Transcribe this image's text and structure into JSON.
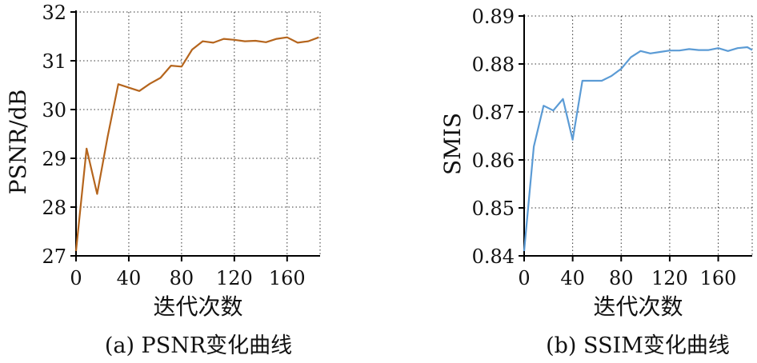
{
  "chart_data": [
    {
      "type": "line",
      "title": "",
      "caption": "(a) PSNR变化曲线",
      "xlabel": "迭代次数",
      "ylabel": "PSNR/dB",
      "xlim": [
        0,
        185
      ],
      "ylim": [
        27,
        32
      ],
      "xticks": [
        "0",
        "40",
        "80",
        "120",
        "160"
      ],
      "yticks": [
        "27",
        "28",
        "29",
        "30",
        "31",
        "32"
      ],
      "grid": true,
      "color": "#B5651D",
      "series": [
        {
          "x": [
            0,
            8,
            16,
            24,
            32,
            40,
            48,
            56,
            64,
            72,
            80,
            88,
            96,
            104,
            112,
            120,
            128,
            136,
            144,
            152,
            160,
            168,
            176,
            184
          ],
          "y": [
            27.1,
            29.2,
            28.27,
            29.45,
            30.52,
            30.45,
            30.38,
            30.53,
            30.65,
            30.9,
            30.88,
            31.23,
            31.4,
            31.37,
            31.45,
            31.43,
            31.4,
            31.41,
            31.38,
            31.45,
            31.48,
            31.37,
            31.4,
            31.48
          ]
        }
      ]
    },
    {
      "type": "line",
      "title": "",
      "caption": "(b) SSIM变化曲线",
      "xlabel": "迭代次数",
      "ylabel": "SMIS",
      "xlim": [
        0,
        188
      ],
      "ylim": [
        0.84,
        0.89
      ],
      "xticks": [
        "0",
        "40",
        "80",
        "120",
        "160"
      ],
      "yticks": [
        "0.84",
        "0.85",
        "0.86",
        "0.87",
        "0.88",
        "0.89"
      ],
      "grid": true,
      "color": "#5B9BD5",
      "series": [
        {
          "x": [
            0,
            8,
            16,
            24,
            32,
            40,
            48,
            56,
            64,
            72,
            80,
            88,
            96,
            104,
            112,
            120,
            128,
            136,
            144,
            152,
            160,
            168,
            176,
            184,
            188
          ],
          "y": [
            0.841,
            0.8628,
            0.8713,
            0.8703,
            0.8727,
            0.8642,
            0.8765,
            0.8765,
            0.8765,
            0.8775,
            0.879,
            0.8814,
            0.8827,
            0.8822,
            0.8825,
            0.8828,
            0.8828,
            0.8831,
            0.8829,
            0.8829,
            0.8833,
            0.8827,
            0.8833,
            0.8835,
            0.8829
          ]
        }
      ]
    }
  ]
}
